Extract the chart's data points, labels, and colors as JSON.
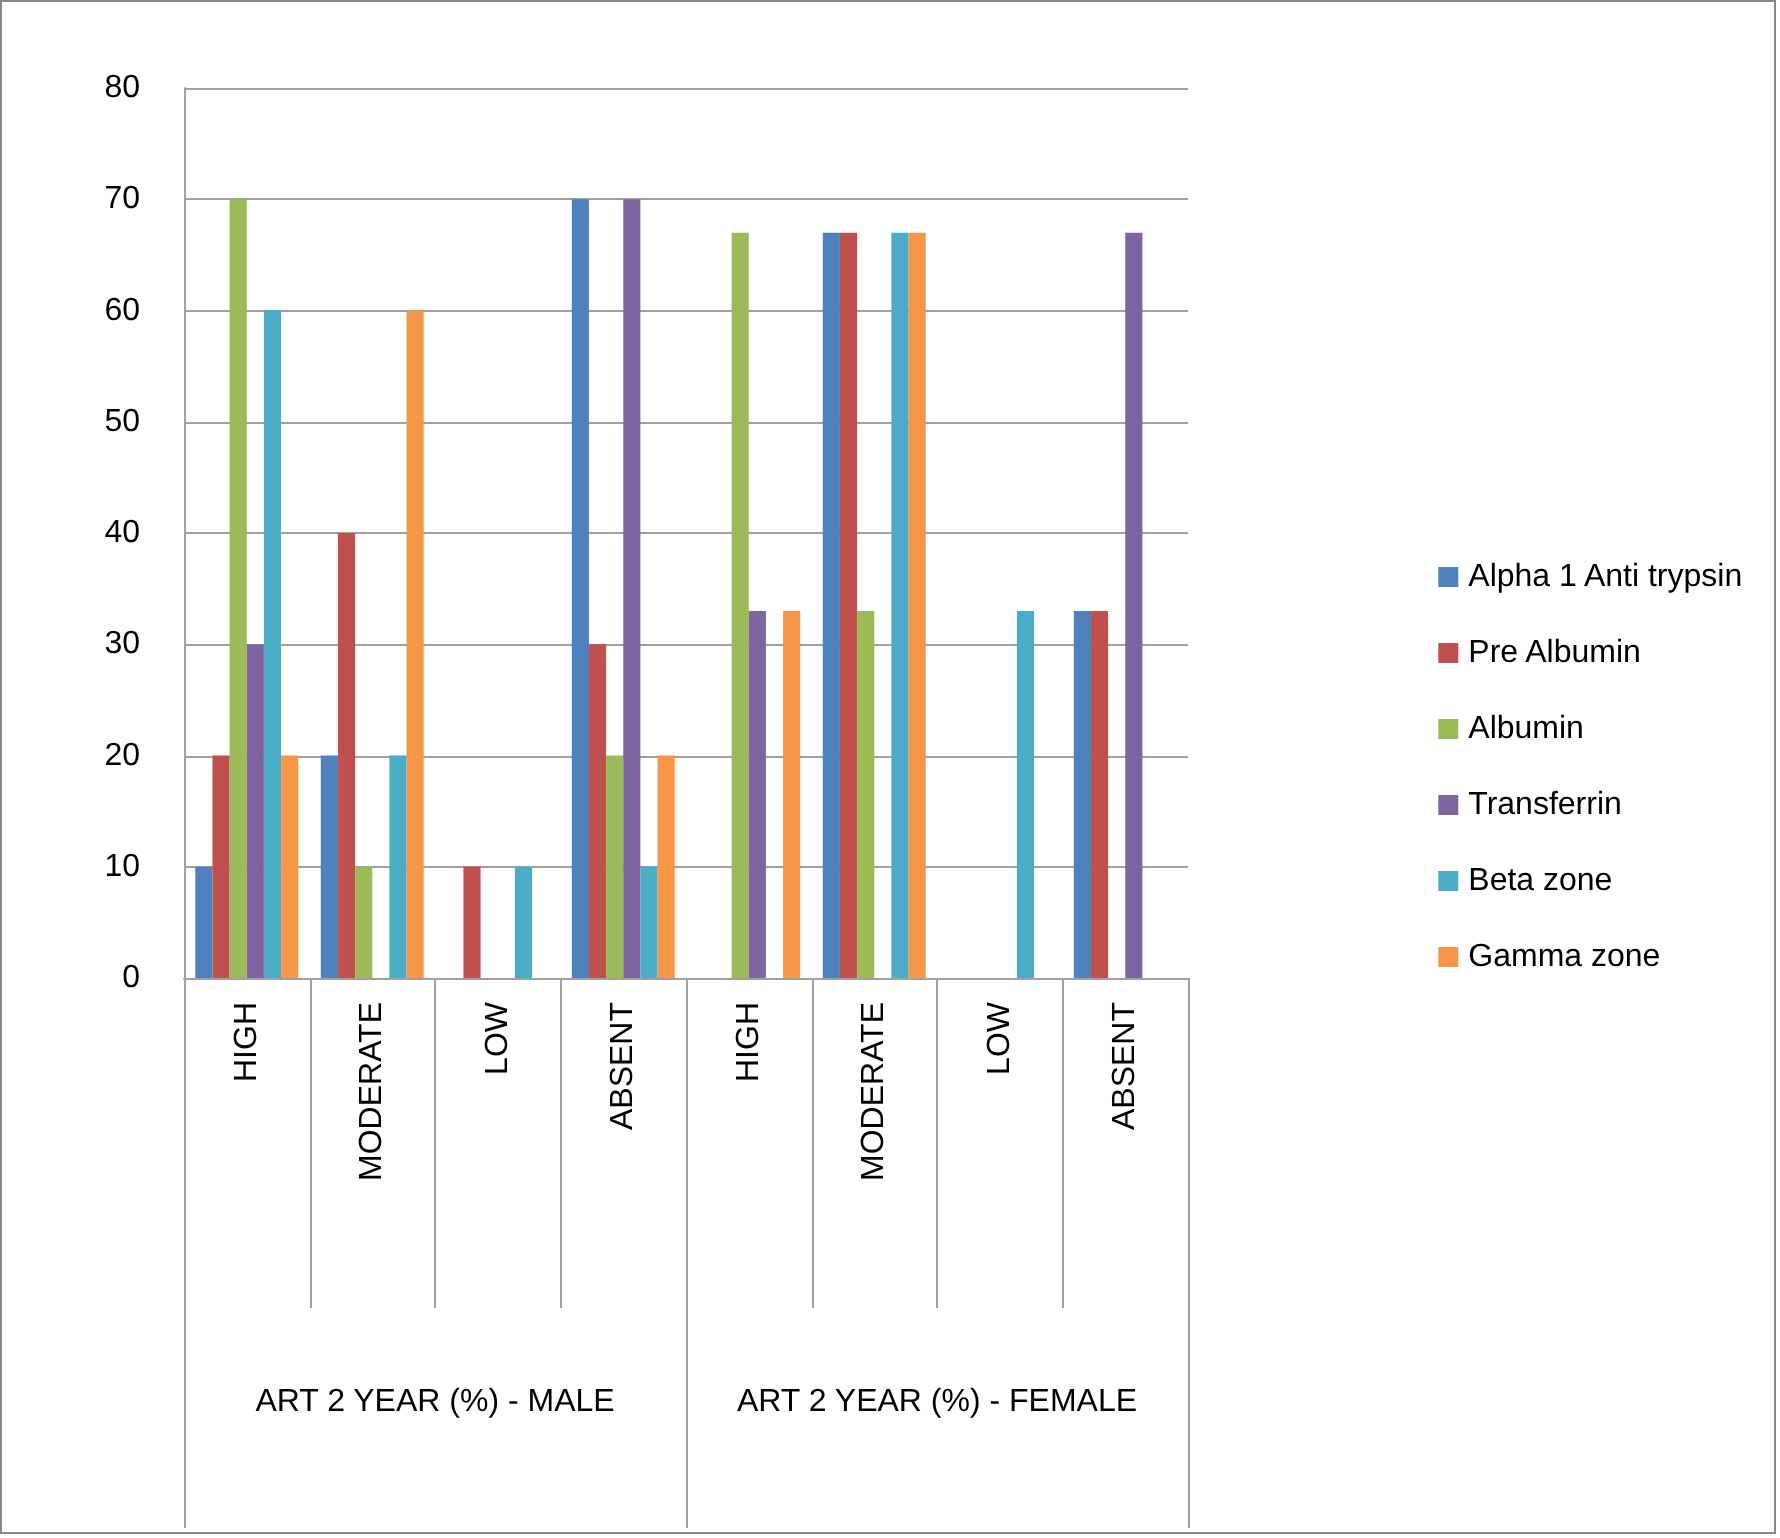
{
  "chart_data": {
    "type": "bar",
    "categories": [
      "HIGH",
      "MODERATE",
      "LOW",
      "ABSENT",
      "HIGH",
      "MODERATE",
      "LOW",
      "ABSENT"
    ],
    "annotations": [
      "ART 2 YEAR (%) - MALE",
      "ART 2 YEAR (%) - FEMALE"
    ],
    "series": [
      {
        "name": "Alpha 1 Anti trypsin",
        "color": "#4f81bd",
        "values": [
          10,
          20,
          0,
          70,
          0,
          67,
          0,
          33
        ]
      },
      {
        "name": "Pre Albumin",
        "color": "#c0504d",
        "values": [
          20,
          40,
          10,
          30,
          0,
          67,
          0,
          33
        ]
      },
      {
        "name": "Albumin",
        "color": "#9bbb59",
        "values": [
          70,
          10,
          0,
          20,
          67,
          33,
          0,
          0
        ]
      },
      {
        "name": "Transferrin",
        "color": "#8064a2",
        "values": [
          30,
          0,
          0,
          70,
          33,
          0,
          0,
          67
        ]
      },
      {
        "name": "Beta zone",
        "color": "#4bacc6",
        "values": [
          60,
          20,
          10,
          10,
          0,
          67,
          33,
          0
        ]
      },
      {
        "name": "Gamma zone",
        "color": "#f79646",
        "values": [
          20,
          60,
          0,
          20,
          33,
          67,
          0,
          0
        ]
      }
    ],
    "ylim": [
      0,
      80
    ],
    "yticks": [
      0,
      10,
      20,
      30,
      40,
      50,
      60,
      70,
      80
    ],
    "grid": "y",
    "legend": "right"
  }
}
